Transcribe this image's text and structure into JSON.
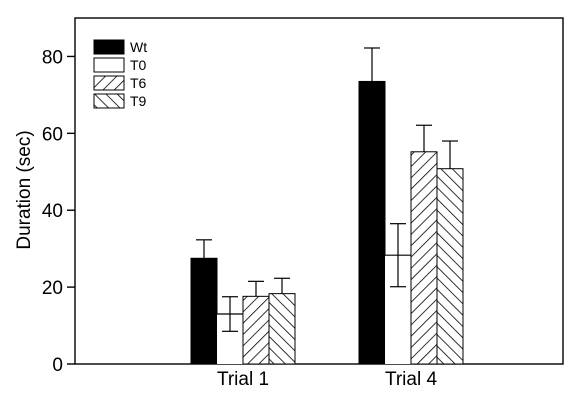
{
  "chart_data": {
    "type": "bar",
    "title": "",
    "xlabel": "",
    "ylabel": "Duration (sec)",
    "ylim": [
      0,
      90
    ],
    "yticks": [
      0,
      20,
      40,
      60,
      80
    ],
    "categories": [
      "Trial 1",
      "Trial 4"
    ],
    "legend_position": "top-left",
    "grid": false,
    "series": [
      {
        "name": "Wt",
        "pattern": "solid",
        "color": "#000000",
        "values": [
          27.5,
          73.5
        ],
        "errors": [
          4.8,
          8.7
        ]
      },
      {
        "name": "T0",
        "pattern": "none",
        "color": "#ffffff",
        "values": [
          13,
          28.3
        ],
        "errors": [
          4.5,
          8.2
        ]
      },
      {
        "name": "T6",
        "pattern": "backslash-hatch",
        "color": "#000000",
        "values": [
          17.6,
          55.2
        ],
        "errors": [
          3.9,
          6.9
        ]
      },
      {
        "name": "T9",
        "pattern": "slash-hatch",
        "color": "#000000",
        "values": [
          18.3,
          50.8
        ],
        "errors": [
          4.0,
          7.2
        ]
      }
    ]
  }
}
